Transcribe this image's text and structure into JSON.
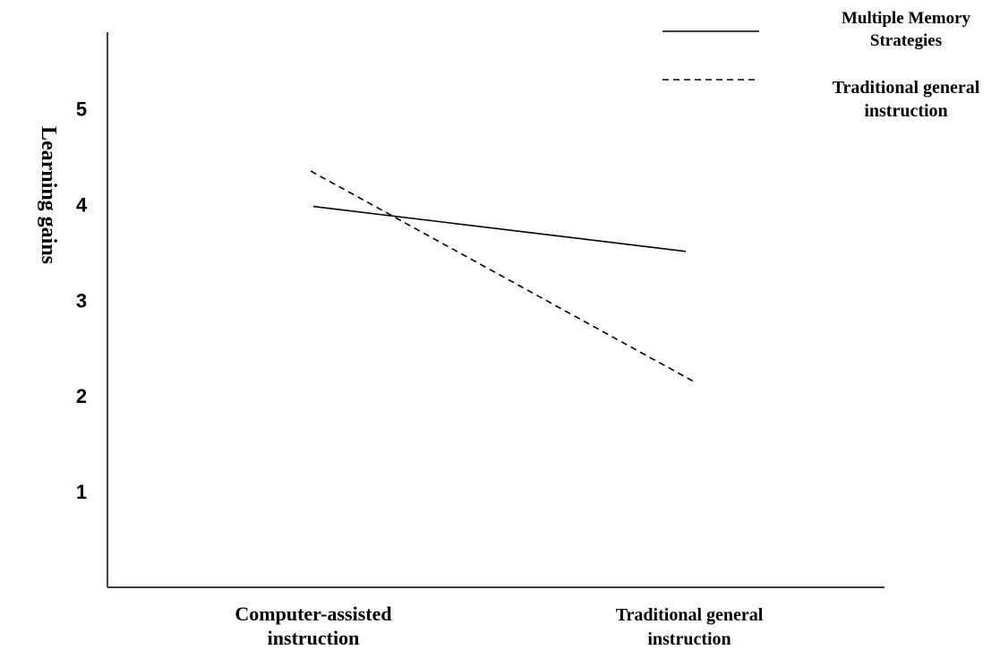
{
  "chart_data": {
    "type": "line",
    "title": "",
    "xlabel": "",
    "ylabel": "Learning gains",
    "categories": [
      "Computer-assisted instruction",
      "Traditional general instruction"
    ],
    "category_label_lines": [
      [
        "Computer-assisted",
        "instruction"
      ],
      [
        "Traditional general",
        "instruction"
      ]
    ],
    "yticks": [
      1,
      2,
      3,
      4,
      5
    ],
    "ylim": [
      0,
      5.8
    ],
    "grid": false,
    "legend_position": "top-right",
    "series": [
      {
        "name": "Multiple Memory Strategies",
        "legend_lines": [
          "Multiple Memory",
          "Strategies"
        ],
        "values": [
          3.98,
          3.51
        ],
        "style": "solid",
        "color": "#000000"
      },
      {
        "name": "Traditional general instruction",
        "legend_lines": [
          "Traditional general",
          "instruction"
        ],
        "values": [
          4.35,
          2.15
        ],
        "style": "dashed",
        "color": "#000000"
      }
    ]
  }
}
